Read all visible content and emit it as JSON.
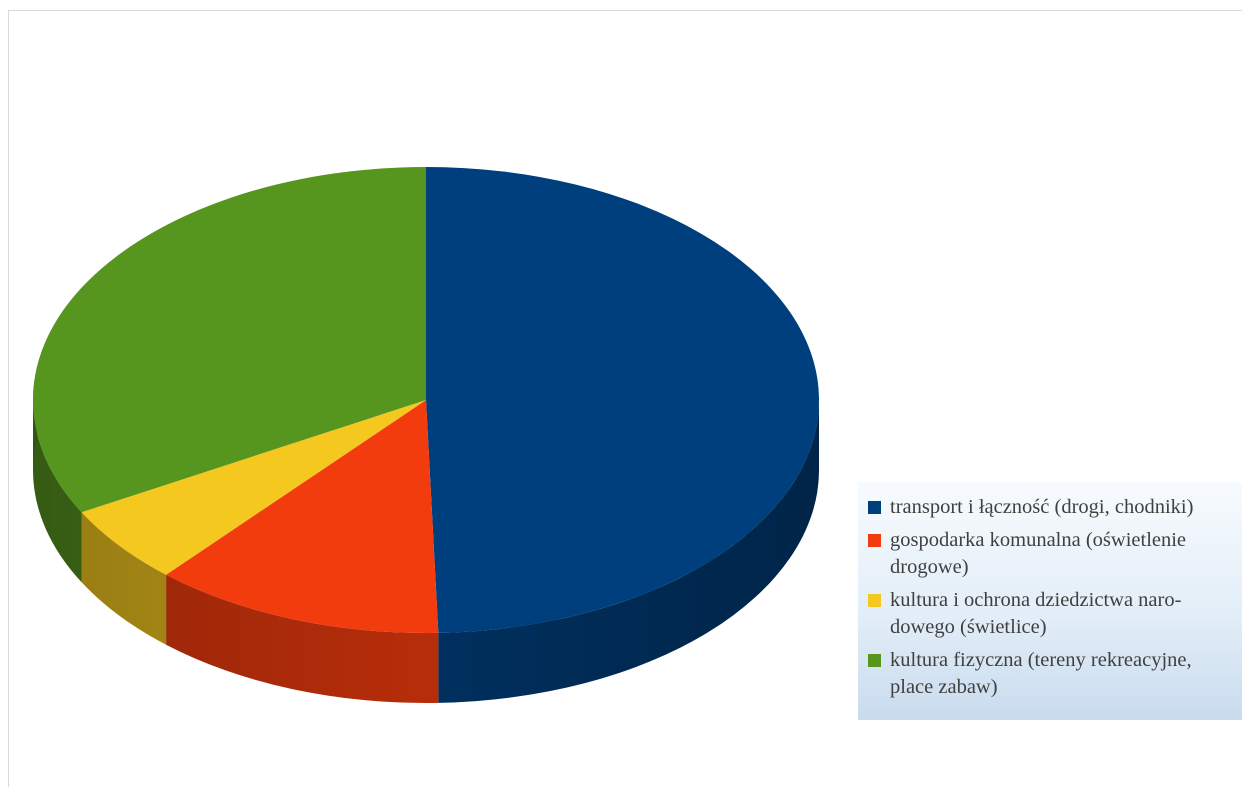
{
  "chart_data": {
    "type": "pie",
    "style": "3d",
    "title": "",
    "slices": [
      {
        "label": "transport i łączność (drogi, chodniki)",
        "value": 49.5,
        "color": "#003f7d"
      },
      {
        "label": "gospodarka komunalna (oświetlenie drogowe)",
        "value": 12.0,
        "color": "#f23c0e"
      },
      {
        "label": "kultura i ochrona dziedzictwa narodowego (świetlice)",
        "value": 5.5,
        "color": "#f4c81f"
      },
      {
        "label": "kultura fizyczna (tereny rekreacyjne, place zabaw)",
        "value": 33.0,
        "color": "#56951e"
      }
    ],
    "legend": {
      "placement": "bottom-right",
      "entries": [
        {
          "color": "#003f7d",
          "lines": [
            "transport i łączność (drogi, chodniki)"
          ]
        },
        {
          "color": "#f23c0e",
          "lines": [
            "gospodarka komunalna (oświetlenie",
            "drogowe)"
          ]
        },
        {
          "color": "#f4c81f",
          "lines": [
            "kultura i ochrona dziedzictwa naro-",
            "dowego (świetlice)"
          ]
        },
        {
          "color": "#56951e",
          "lines": [
            "kultura fizyczna (tereny rekreacyjne,",
            "place zabaw)"
          ]
        }
      ]
    }
  }
}
